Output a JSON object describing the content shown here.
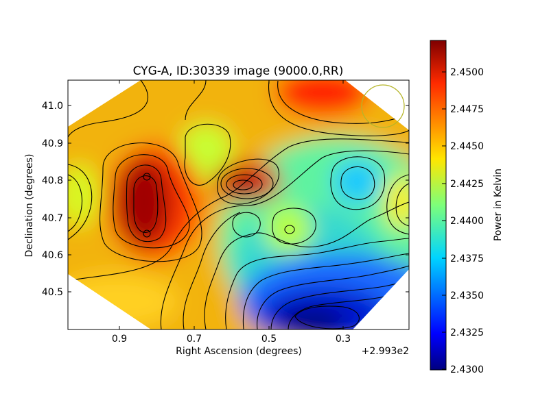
{
  "chart_data": {
    "type": "heatmap",
    "title": "CYG-A, ID:30339 image (9000.0,RR)",
    "xlabel": "Right Ascension (degrees)",
    "ylabel": "Declination (degrees)",
    "x_offset_label": "+2.993e2",
    "x_ticks": [
      "0.9",
      "0.7",
      "0.5",
      "0.3"
    ],
    "y_ticks": [
      "41.0",
      "40.9",
      "40.8",
      "40.7",
      "40.6",
      "40.5"
    ],
    "colorbar": {
      "label": "Power in Kelvin",
      "ticks": [
        "2.4500",
        "2.4475",
        "2.4450",
        "2.4425",
        "2.4400",
        "2.4375",
        "2.4350",
        "2.4325",
        "2.4300"
      ],
      "min": 2.43,
      "max": 2.452,
      "colormap": "jet"
    },
    "xlim": [
      0.94,
      0.23
    ],
    "ylim": [
      40.4,
      41.07
    ],
    "peaks": [
      {
        "ra": 0.82,
        "dec": 40.73,
        "value": 2.4515,
        "kind": "max"
      },
      {
        "ra": 0.57,
        "dec": 40.79,
        "value": 2.45,
        "kind": "max"
      },
      {
        "ra": 0.37,
        "dec": 41.05,
        "value": 2.449,
        "kind": "max"
      },
      {
        "ra": 0.38,
        "dec": 40.45,
        "value": 2.43,
        "kind": "min"
      },
      {
        "ra": 0.32,
        "dec": 40.81,
        "value": 2.4395,
        "kind": "min"
      }
    ],
    "beam_marker": {
      "shape": "circle",
      "color": "#b5b52a"
    },
    "grid": false
  }
}
